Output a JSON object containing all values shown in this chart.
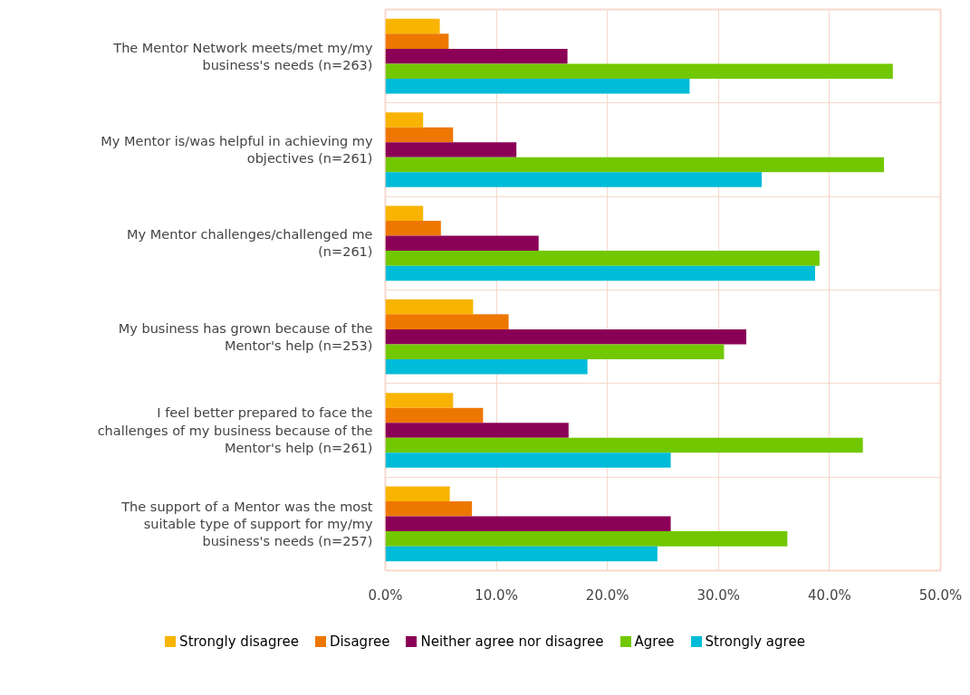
{
  "chart_data": {
    "type": "bar",
    "orientation": "horizontal",
    "categories": [
      "The Mentor Network meets/met my/my business's needs (n=263)",
      "My Mentor is/was helpful in achieving my objectives (n=261)",
      "My Mentor challenges/challenged me (n=261)",
      "My business has grown because of the Mentor's help (n=253)",
      "I feel better prepared to face the challenges of my business because of the Mentor's help (n=261)",
      "The support of a Mentor was the most suitable type of support for my/my business's needs (n=257)"
    ],
    "series": [
      {
        "name": "Strongly disagree",
        "color": "#f8b400",
        "values": [
          4.9,
          3.4,
          3.4,
          7.9,
          6.1,
          5.8
        ]
      },
      {
        "name": "Disagree",
        "color": "#ee7700",
        "values": [
          5.7,
          6.1,
          5.0,
          11.1,
          8.8,
          7.8
        ]
      },
      {
        "name": "Neither agree nor disagree",
        "color": "#8b0057",
        "values": [
          16.4,
          11.8,
          13.8,
          32.5,
          16.5,
          25.7
        ]
      },
      {
        "name": "Agree",
        "color": "#72c800",
        "values": [
          45.7,
          44.9,
          39.1,
          30.5,
          43.0,
          36.2
        ]
      },
      {
        "name": "Strongly agree",
        "color": "#00bcd8",
        "values": [
          27.4,
          33.9,
          38.7,
          18.2,
          25.7,
          24.5
        ]
      }
    ],
    "xlim": [
      0,
      50
    ],
    "xticks": [
      {
        "value": 0,
        "label": "0.0%"
      },
      {
        "value": 10,
        "label": "10.0%"
      },
      {
        "value": 20,
        "label": "20.0%"
      },
      {
        "value": 30,
        "label": "30.0%"
      },
      {
        "value": 40,
        "label": "40.0%"
      },
      {
        "value": 50,
        "label": "50.0%"
      }
    ],
    "grid": true,
    "legend": "bottom"
  }
}
